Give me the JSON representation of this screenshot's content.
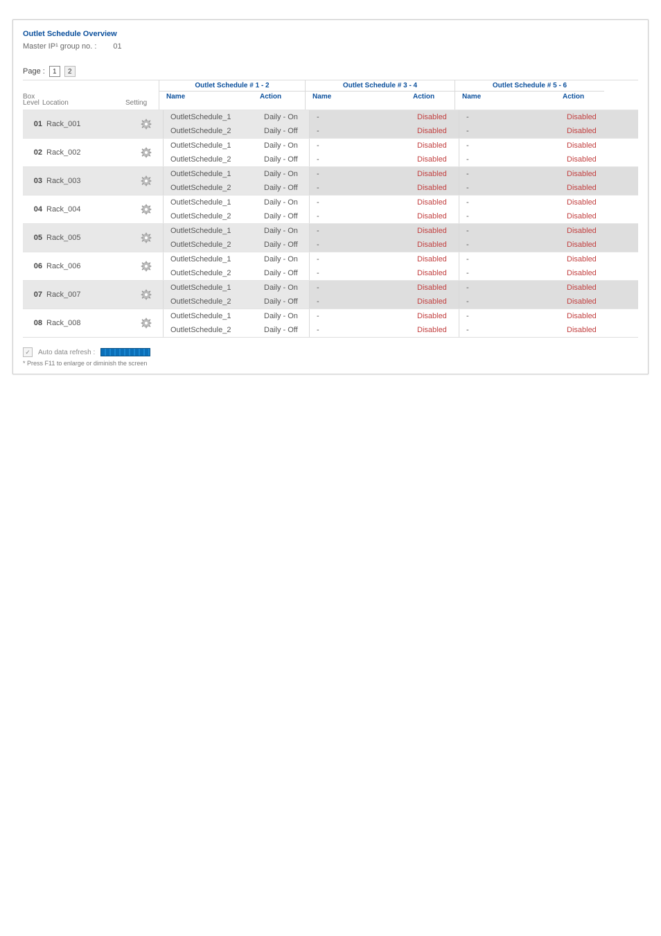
{
  "colors": {
    "accent": "#0a4f9c",
    "disabled": "#c24040",
    "alt_row": "#e8e8e8",
    "alt_row_dark": "#dedede",
    "border": "#d8d8d8"
  },
  "title": "Outlet  Schedule  Overview",
  "master_label": "Master IP¹ group no. :",
  "master_value": "01",
  "page_label": "Page :",
  "pages": [
    "1",
    "2"
  ],
  "current_page": "1",
  "headers": {
    "box_level": "Box\nLevel",
    "box": "Box",
    "level": "Level",
    "location": "Location",
    "setting": "Setting",
    "group12": "Outlet Schedule # 1 - 2",
    "group34": "Outlet Schedule # 3 - 4",
    "group56": "Outlet Schedule # 5 - 6",
    "name": "Name",
    "action": "Action"
  },
  "rows": [
    {
      "box": "01",
      "location": "Rack_001",
      "schedules": [
        {
          "name": "OutletSchedule_1",
          "action": "Daily - On"
        },
        {
          "name": "OutletSchedule_2",
          "action": "Daily - Off"
        }
      ],
      "sched34": [
        {
          "name": "-",
          "action": "Disabled"
        },
        {
          "name": "-",
          "action": "Disabled"
        }
      ],
      "sched56": [
        {
          "name": "-",
          "action": "Disabled"
        },
        {
          "name": "-",
          "action": "Disabled"
        }
      ]
    },
    {
      "box": "02",
      "location": "Rack_002",
      "schedules": [
        {
          "name": "OutletSchedule_1",
          "action": "Daily - On"
        },
        {
          "name": "OutletSchedule_2",
          "action": "Daily - Off"
        }
      ],
      "sched34": [
        {
          "name": "-",
          "action": "Disabled"
        },
        {
          "name": "-",
          "action": "Disabled"
        }
      ],
      "sched56": [
        {
          "name": "-",
          "action": "Disabled"
        },
        {
          "name": "-",
          "action": "Disabled"
        }
      ]
    },
    {
      "box": "03",
      "location": "Rack_003",
      "schedules": [
        {
          "name": "OutletSchedule_1",
          "action": "Daily - On"
        },
        {
          "name": "OutletSchedule_2",
          "action": "Daily - Off"
        }
      ],
      "sched34": [
        {
          "name": "-",
          "action": "Disabled"
        },
        {
          "name": "-",
          "action": "Disabled"
        }
      ],
      "sched56": [
        {
          "name": "-",
          "action": "Disabled"
        },
        {
          "name": "-",
          "action": "Disabled"
        }
      ]
    },
    {
      "box": "04",
      "location": "Rack_004",
      "schedules": [
        {
          "name": "OutletSchedule_1",
          "action": "Daily - On"
        },
        {
          "name": "OutletSchedule_2",
          "action": "Daily - Off"
        }
      ],
      "sched34": [
        {
          "name": "-",
          "action": "Disabled"
        },
        {
          "name": "-",
          "action": "Disabled"
        }
      ],
      "sched56": [
        {
          "name": "-",
          "action": "Disabled"
        },
        {
          "name": "-",
          "action": "Disabled"
        }
      ]
    },
    {
      "box": "05",
      "location": "Rack_005",
      "schedules": [
        {
          "name": "OutletSchedule_1",
          "action": "Daily - On"
        },
        {
          "name": "OutletSchedule_2",
          "action": "Daily - Off"
        }
      ],
      "sched34": [
        {
          "name": "-",
          "action": "Disabled"
        },
        {
          "name": "-",
          "action": "Disabled"
        }
      ],
      "sched56": [
        {
          "name": "-",
          "action": "Disabled"
        },
        {
          "name": "-",
          "action": "Disabled"
        }
      ]
    },
    {
      "box": "06",
      "location": "Rack_006",
      "schedules": [
        {
          "name": "OutletSchedule_1",
          "action": "Daily - On"
        },
        {
          "name": "OutletSchedule_2",
          "action": "Daily - Off"
        }
      ],
      "sched34": [
        {
          "name": "-",
          "action": "Disabled"
        },
        {
          "name": "-",
          "action": "Disabled"
        }
      ],
      "sched56": [
        {
          "name": "-",
          "action": "Disabled"
        },
        {
          "name": "-",
          "action": "Disabled"
        }
      ]
    },
    {
      "box": "07",
      "location": "Rack_007",
      "schedules": [
        {
          "name": "OutletSchedule_1",
          "action": "Daily - On"
        },
        {
          "name": "OutletSchedule_2",
          "action": "Daily - Off"
        }
      ],
      "sched34": [
        {
          "name": "-",
          "action": "Disabled"
        },
        {
          "name": "-",
          "action": "Disabled"
        }
      ],
      "sched56": [
        {
          "name": "-",
          "action": "Disabled"
        },
        {
          "name": "-",
          "action": "Disabled"
        }
      ]
    },
    {
      "box": "08",
      "location": "Rack_008",
      "schedules": [
        {
          "name": "OutletSchedule_1",
          "action": "Daily - On"
        },
        {
          "name": "OutletSchedule_2",
          "action": "Daily - Off"
        }
      ],
      "sched34": [
        {
          "name": "-",
          "action": "Disabled"
        },
        {
          "name": "-",
          "action": "Disabled"
        }
      ],
      "sched56": [
        {
          "name": "-",
          "action": "Disabled"
        },
        {
          "name": "-",
          "action": "Disabled"
        }
      ]
    }
  ],
  "footer": {
    "auto_refresh_label": "Auto data refresh :",
    "auto_refresh_checked": true,
    "note": "* Press F11 to enlarge or diminish the screen"
  }
}
